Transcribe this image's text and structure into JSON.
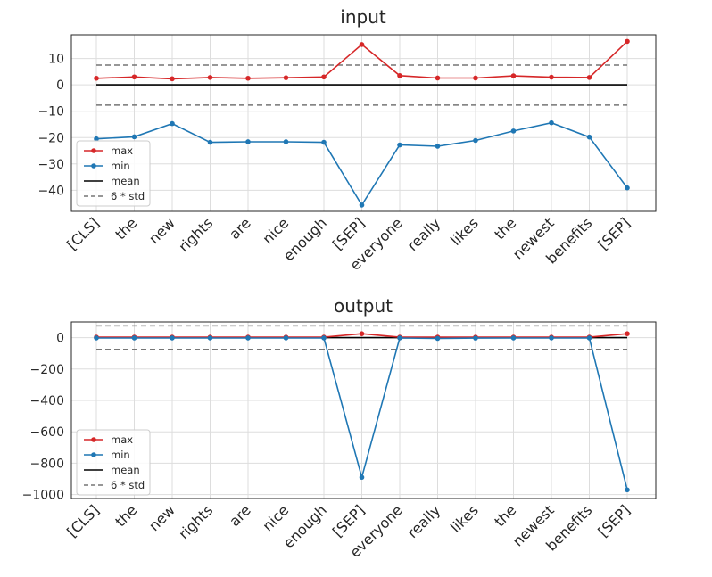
{
  "chart_data": [
    {
      "type": "line",
      "title": "input",
      "categories": [
        "[CLS]",
        "the",
        "new",
        "rights",
        "are",
        "nice",
        "enough",
        "[SEP]",
        "everyone",
        "really",
        "likes",
        "the",
        "newest",
        "benefits",
        "[SEP]"
      ],
      "yticks": [
        "10",
        "0",
        "−10",
        "−20",
        "−30",
        "−40"
      ],
      "ylim": [
        -48,
        19
      ],
      "grid": true,
      "legend_position": "lower-left",
      "series": [
        {
          "name": "max",
          "color": "#d62728",
          "style": "line-marker",
          "values": [
            2.5,
            3.0,
            2.3,
            2.8,
            2.5,
            2.7,
            3.0,
            15.3,
            3.5,
            2.6,
            2.6,
            3.4,
            2.9,
            2.8,
            16.5
          ]
        },
        {
          "name": "min",
          "color": "#1f77b4",
          "style": "line-marker",
          "values": [
            -20.5,
            -19.7,
            -14.7,
            -21.8,
            -21.6,
            -21.6,
            -21.8,
            -45.6,
            -22.8,
            -23.3,
            -21.1,
            -17.5,
            -14.4,
            -19.8,
            -39.1
          ]
        },
        {
          "name": "mean",
          "color": "#000000",
          "style": "line",
          "values": [
            0,
            0,
            0,
            0,
            0,
            0,
            0,
            0,
            0,
            0,
            0,
            0,
            0,
            0,
            0
          ]
        },
        {
          "name": "6 * std",
          "color": "#757575",
          "style": "dashed",
          "values": [
            7.5,
            7.5,
            7.5,
            7.5,
            7.5,
            7.5,
            7.5,
            7.5,
            7.5,
            7.5,
            7.5,
            7.5,
            7.5,
            7.5,
            7.5
          ],
          "mirror": [
            -7.7,
            -7.7,
            -7.7,
            -7.7,
            -7.7,
            -7.7,
            -7.7,
            -7.7,
            -7.7,
            -7.7,
            -7.7,
            -7.7,
            -7.7,
            -7.7,
            -7.7
          ]
        }
      ]
    },
    {
      "type": "line",
      "title": "output",
      "categories": [
        "[CLS]",
        "the",
        "new",
        "rights",
        "are",
        "nice",
        "enough",
        "[SEP]",
        "everyone",
        "really",
        "likes",
        "the",
        "newest",
        "benefits",
        "[SEP]"
      ],
      "yticks": [
        "0",
        "−200",
        "−400",
        "−600",
        "−800",
        "−1000"
      ],
      "ylim": [
        -1025,
        100
      ],
      "grid": true,
      "legend_position": "lower-left",
      "series": [
        {
          "name": "max",
          "color": "#d62728",
          "style": "line-marker",
          "values": [
            3,
            3,
            3,
            3,
            3,
            3,
            3,
            25,
            3,
            3,
            3,
            3,
            3,
            3,
            25
          ]
        },
        {
          "name": "min",
          "color": "#1f77b4",
          "style": "line-marker",
          "values": [
            -2,
            -2,
            -2,
            -2,
            -2,
            -2,
            -2,
            -890,
            -2,
            -5,
            -3,
            -2,
            -2,
            -2,
            -970
          ]
        },
        {
          "name": "mean",
          "color": "#000000",
          "style": "line",
          "values": [
            0,
            0,
            0,
            0,
            0,
            0,
            0,
            0,
            0,
            0,
            0,
            0,
            0,
            0,
            0
          ]
        },
        {
          "name": "6 * std",
          "color": "#757575",
          "style": "dashed",
          "values": [
            75,
            75,
            75,
            75,
            75,
            75,
            75,
            75,
            75,
            75,
            75,
            75,
            75,
            75,
            75
          ],
          "mirror": [
            -75,
            -75,
            -75,
            -75,
            -75,
            -75,
            -75,
            -75,
            -75,
            -75,
            -75,
            -75,
            -75,
            -75,
            -75
          ]
        }
      ]
    }
  ]
}
